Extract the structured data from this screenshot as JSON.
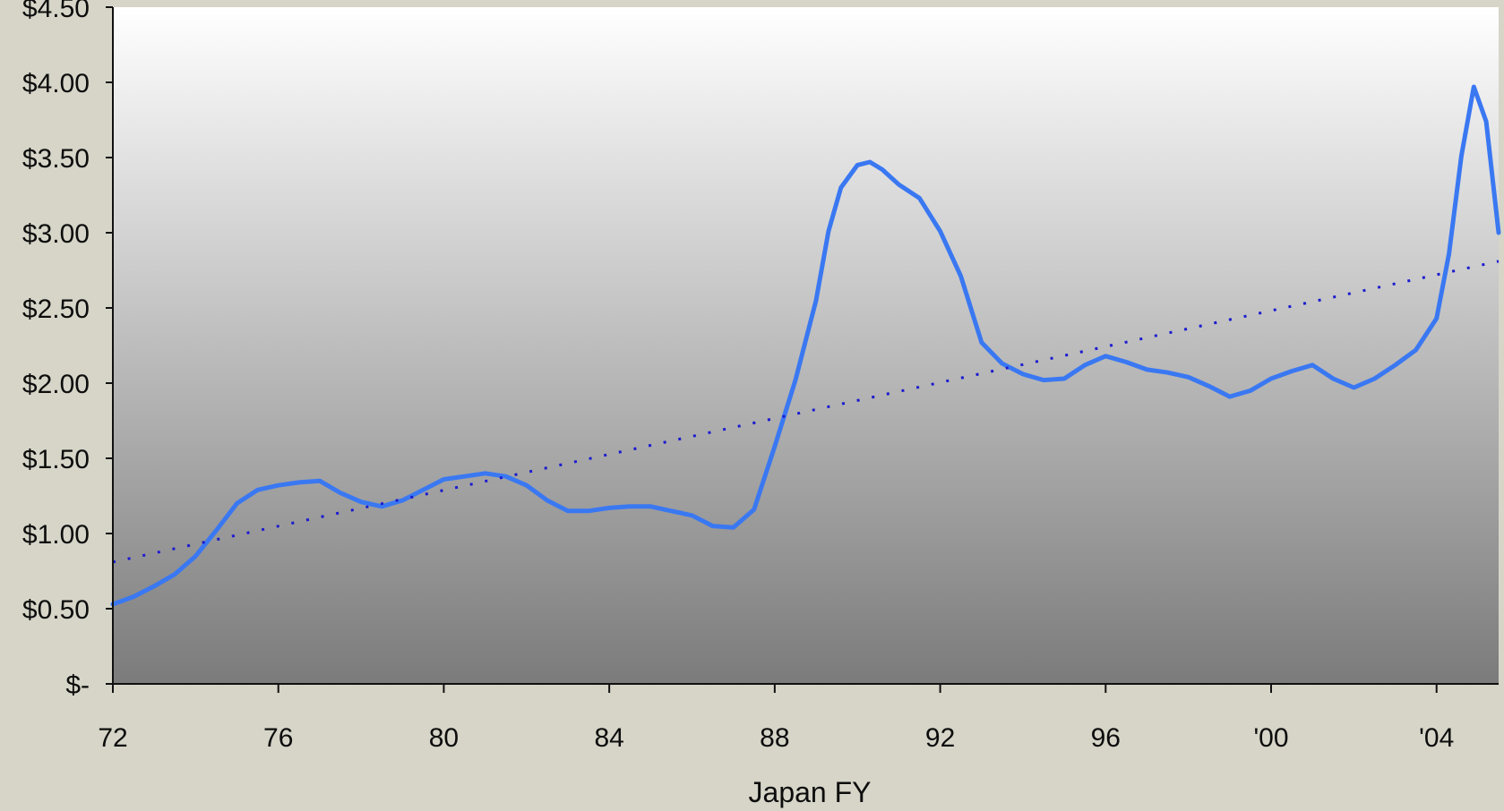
{
  "chart_data": {
    "type": "line",
    "title": "",
    "xlabel": "Japan FY",
    "ylabel": "",
    "xlim": [
      1972,
      2005.5
    ],
    "ylim": [
      0,
      4.5
    ],
    "x_ticks": [
      {
        "value": 1972,
        "label": "72"
      },
      {
        "value": 1976,
        "label": "76"
      },
      {
        "value": 1980,
        "label": "80"
      },
      {
        "value": 1984,
        "label": "84"
      },
      {
        "value": 1988,
        "label": "88"
      },
      {
        "value": 1992,
        "label": "92"
      },
      {
        "value": 1996,
        "label": "96"
      },
      {
        "value": 2000,
        "label": "'00"
      },
      {
        "value": 2004,
        "label": "'04"
      }
    ],
    "y_ticks": [
      {
        "value": 0,
        "label": "$-"
      },
      {
        "value": 0.5,
        "label": "$0.50"
      },
      {
        "value": 1.0,
        "label": "$1.00"
      },
      {
        "value": 1.5,
        "label": "$1.50"
      },
      {
        "value": 2.0,
        "label": "$2.00"
      },
      {
        "value": 2.5,
        "label": "$2.50"
      },
      {
        "value": 3.0,
        "label": "$3.00"
      },
      {
        "value": 3.5,
        "label": "$3.50"
      },
      {
        "value": 4.0,
        "label": "$4.00"
      },
      {
        "value": 4.5,
        "label": "$4.50"
      }
    ],
    "grid": false,
    "legend": "none",
    "series": [
      {
        "style": "solid",
        "color": "#3a78f2",
        "x": [
          1972,
          1972.5,
          1973,
          1973.5,
          1974,
          1974.5,
          1975,
          1975.5,
          1976,
          1976.5,
          1977,
          1977.5,
          1978,
          1978.5,
          1979,
          1979.5,
          1980,
          1980.5,
          1981,
          1981.5,
          1982,
          1982.5,
          1983,
          1983.5,
          1984,
          1984.5,
          1985,
          1985.5,
          1986,
          1986.5,
          1987,
          1987.5,
          1988,
          1988.5,
          1989,
          1989.3,
          1989.6,
          1990,
          1990.3,
          1990.6,
          1991,
          1991.5,
          1992,
          1992.5,
          1993,
          1993.5,
          1994,
          1994.5,
          1995,
          1995.5,
          1996,
          1996.5,
          1997,
          1997.5,
          1998,
          1998.5,
          1999,
          1999.5,
          2000,
          2000.5,
          2001,
          2001.5,
          2002,
          2002.5,
          2003,
          2003.5,
          2004,
          2004.3,
          2004.6,
          2004.9,
          2005.2,
          2005.5
        ],
        "values": [
          0.53,
          0.58,
          0.65,
          0.73,
          0.85,
          1.02,
          1.2,
          1.29,
          1.32,
          1.34,
          1.35,
          1.27,
          1.21,
          1.18,
          1.22,
          1.29,
          1.36,
          1.38,
          1.4,
          1.38,
          1.32,
          1.22,
          1.15,
          1.15,
          1.17,
          1.18,
          1.18,
          1.15,
          1.12,
          1.05,
          1.04,
          1.16,
          1.58,
          2.02,
          2.55,
          3.01,
          3.3,
          3.45,
          3.47,
          3.42,
          3.32,
          3.23,
          3.01,
          2.71,
          2.27,
          2.13,
          2.06,
          2.02,
          2.03,
          2.12,
          2.18,
          2.14,
          2.09,
          2.07,
          2.04,
          1.98,
          1.91,
          1.95,
          2.03,
          2.08,
          2.12,
          2.03,
          1.97,
          2.03,
          2.12,
          2.22,
          2.43,
          2.86,
          3.51,
          3.97,
          3.74,
          3.0
        ]
      },
      {
        "style": "dotted",
        "color": "#1b1bd0",
        "x": [
          1972,
          2005.5
        ],
        "values": [
          0.81,
          2.81
        ]
      }
    ]
  }
}
